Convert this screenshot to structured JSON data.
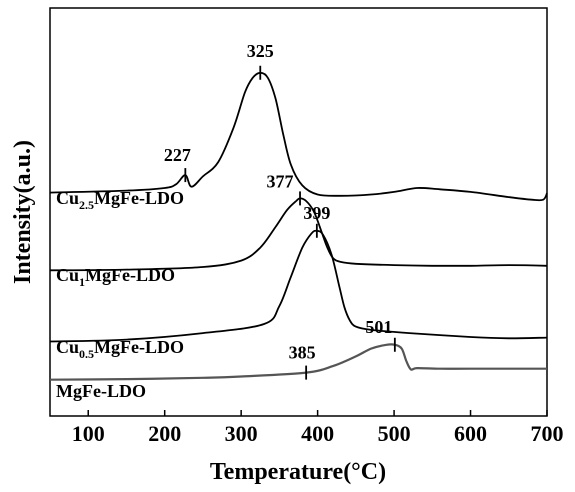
{
  "chart_data": {
    "type": "line",
    "xlabel": "Temperature(°C)",
    "ylabel": "Intensity(a.u.)",
    "xlim": [
      50,
      700
    ],
    "xticks": [
      100,
      200,
      300,
      400,
      500,
      600,
      700
    ],
    "yticks_shown": false,
    "grid": false,
    "legend": "none (labels placed beside each curve)",
    "series": [
      {
        "label_main1": "Cu",
        "label_sub": "2.5",
        "label_main2": "MgFe-LDO",
        "color": "#000000",
        "baseline": 4.1,
        "x": [
          50,
          150,
          200,
          215,
          227,
          235,
          250,
          270,
          290,
          305,
          315,
          325,
          335,
          345,
          355,
          365,
          380,
          400,
          430,
          470,
          500,
          530,
          560,
          600,
          650,
          680,
          695,
          700
        ],
        "y": [
          4.15,
          4.18,
          4.22,
          4.28,
          4.42,
          4.24,
          4.4,
          4.62,
          5.15,
          5.7,
          5.92,
          6.0,
          5.92,
          5.6,
          5.05,
          4.58,
          4.26,
          4.12,
          4.1,
          4.12,
          4.16,
          4.22,
          4.2,
          4.16,
          4.08,
          4.04,
          4.04,
          4.14
        ],
        "peaks": [
          227,
          325
        ]
      },
      {
        "label_main1": "Cu",
        "label_sub": "1",
        "label_main2": "MgFe-LDO",
        "color": "#000000",
        "baseline": 2.95,
        "x": [
          50,
          150,
          250,
          300,
          325,
          345,
          360,
          372,
          377,
          385,
          395,
          405,
          412,
          420,
          430,
          450,
          500,
          550,
          600,
          650,
          700
        ],
        "y": [
          2.95,
          2.96,
          3.0,
          3.1,
          3.3,
          3.62,
          3.88,
          4.02,
          4.06,
          4.02,
          3.86,
          3.55,
          3.32,
          3.14,
          3.08,
          3.05,
          3.03,
          3.02,
          3.02,
          3.03,
          3.02
        ],
        "peaks": [
          377
        ]
      },
      {
        "label_main1": "Cu",
        "label_sub": "0.5",
        "label_main2": "MgFe-LDO",
        "color": "#000000",
        "baseline": 1.85,
        "x": [
          50,
          150,
          250,
          330,
          350,
          365,
          380,
          392,
          399,
          407,
          418,
          428,
          435,
          442,
          450,
          470,
          520,
          600,
          650,
          700
        ],
        "y": [
          1.85,
          1.88,
          1.98,
          2.12,
          2.4,
          2.85,
          3.3,
          3.52,
          3.56,
          3.5,
          3.2,
          2.72,
          2.38,
          2.18,
          2.08,
          2.03,
          1.98,
          1.92,
          1.9,
          1.91
        ],
        "peaks": [
          399
        ]
      },
      {
        "label_main1": "MgFe-LDO",
        "label_sub": "",
        "label_main2": "",
        "color": "#555555",
        "baseline": 1.3,
        "x": [
          50,
          150,
          250,
          300,
          385,
          420,
          450,
          470,
          490,
          501,
          510,
          516,
          522,
          530,
          560,
          600,
          700
        ],
        "y": [
          1.26,
          1.27,
          1.29,
          1.31,
          1.37,
          1.47,
          1.62,
          1.74,
          1.8,
          1.8,
          1.74,
          1.55,
          1.42,
          1.44,
          1.43,
          1.43,
          1.43
        ],
        "peaks": [
          385,
          501
        ]
      }
    ],
    "peak_labels": [
      "227",
      "325",
      "377",
      "399",
      "385",
      "501"
    ]
  }
}
